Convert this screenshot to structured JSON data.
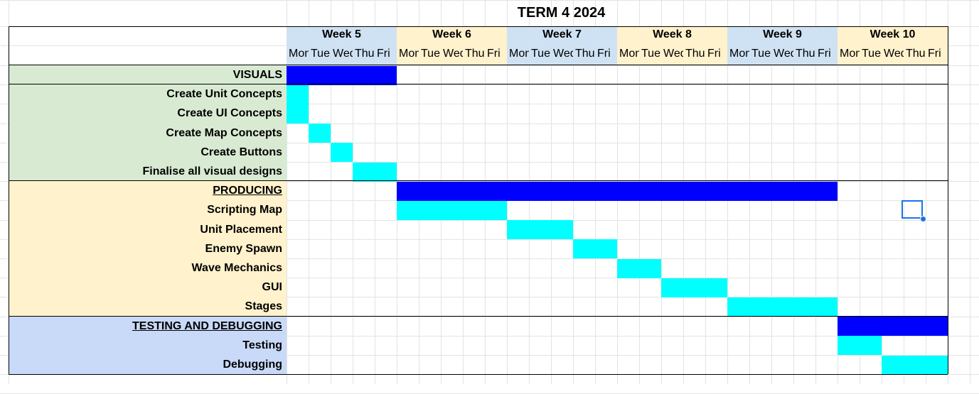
{
  "title": "TERM 4 2024",
  "weeks": [
    {
      "label": "Week 5",
      "color": "#cfe2f3"
    },
    {
      "label": "Week 6",
      "color": "#fff2cc"
    },
    {
      "label": "Week 7",
      "color": "#cfe2f3"
    },
    {
      "label": "Week 8",
      "color": "#fff2cc"
    },
    {
      "label": "Week 9",
      "color": "#cfe2f3"
    },
    {
      "label": "Week 10",
      "color": "#fff2cc"
    }
  ],
  "days": [
    "Mon",
    "Tue",
    "Wed",
    "Thu",
    "Fri"
  ],
  "colors": {
    "phase_bar": "#0000ff",
    "task_bar": "#00ffff",
    "visuals_bg": "#d9ead3",
    "producing_bg": "#fff2cc",
    "testing_bg": "#c9daf8",
    "selection": "#1a73e8"
  },
  "tasks": [
    {
      "label": "VISUALS",
      "phase": true,
      "underline": false,
      "group": "visuals",
      "start": 0,
      "end": 4
    },
    {
      "label": "Create Unit Concepts",
      "phase": false,
      "underline": false,
      "group": "visuals",
      "start": 0,
      "end": 0
    },
    {
      "label": "Create UI Concepts",
      "phase": false,
      "underline": false,
      "group": "visuals",
      "start": 0,
      "end": 0
    },
    {
      "label": "Create Map Concepts",
      "phase": false,
      "underline": false,
      "group": "visuals",
      "start": 1,
      "end": 1
    },
    {
      "label": "Create Buttons",
      "phase": false,
      "underline": false,
      "group": "visuals",
      "start": 2,
      "end": 2
    },
    {
      "label": "Finalise all visual designs",
      "phase": false,
      "underline": false,
      "group": "visuals",
      "start": 3,
      "end": 4
    },
    {
      "label": "PRODUCING",
      "phase": true,
      "underline": true,
      "group": "producing",
      "start": 5,
      "end": 24
    },
    {
      "label": "Scripting Map",
      "phase": false,
      "underline": false,
      "group": "producing",
      "start": 5,
      "end": 9
    },
    {
      "label": "Unit Placement",
      "phase": false,
      "underline": false,
      "group": "producing",
      "start": 10,
      "end": 12
    },
    {
      "label": "Enemy Spawn",
      "phase": false,
      "underline": false,
      "group": "producing",
      "start": 13,
      "end": 14
    },
    {
      "label": "Wave Mechanics",
      "phase": false,
      "underline": false,
      "group": "producing",
      "start": 15,
      "end": 16
    },
    {
      "label": "GUI",
      "phase": false,
      "underline": false,
      "group": "producing",
      "start": 17,
      "end": 19
    },
    {
      "label": "Stages",
      "phase": false,
      "underline": false,
      "group": "producing",
      "start": 20,
      "end": 24
    },
    {
      "label": "TESTING AND DEBUGGING",
      "phase": true,
      "underline": true,
      "group": "testing",
      "start": 25,
      "end": 29
    },
    {
      "label": "Testing",
      "phase": false,
      "underline": false,
      "group": "testing",
      "start": 25,
      "end": 26
    },
    {
      "label": "Debugging",
      "phase": false,
      "underline": false,
      "group": "testing",
      "start": 27,
      "end": 29
    }
  ]
}
